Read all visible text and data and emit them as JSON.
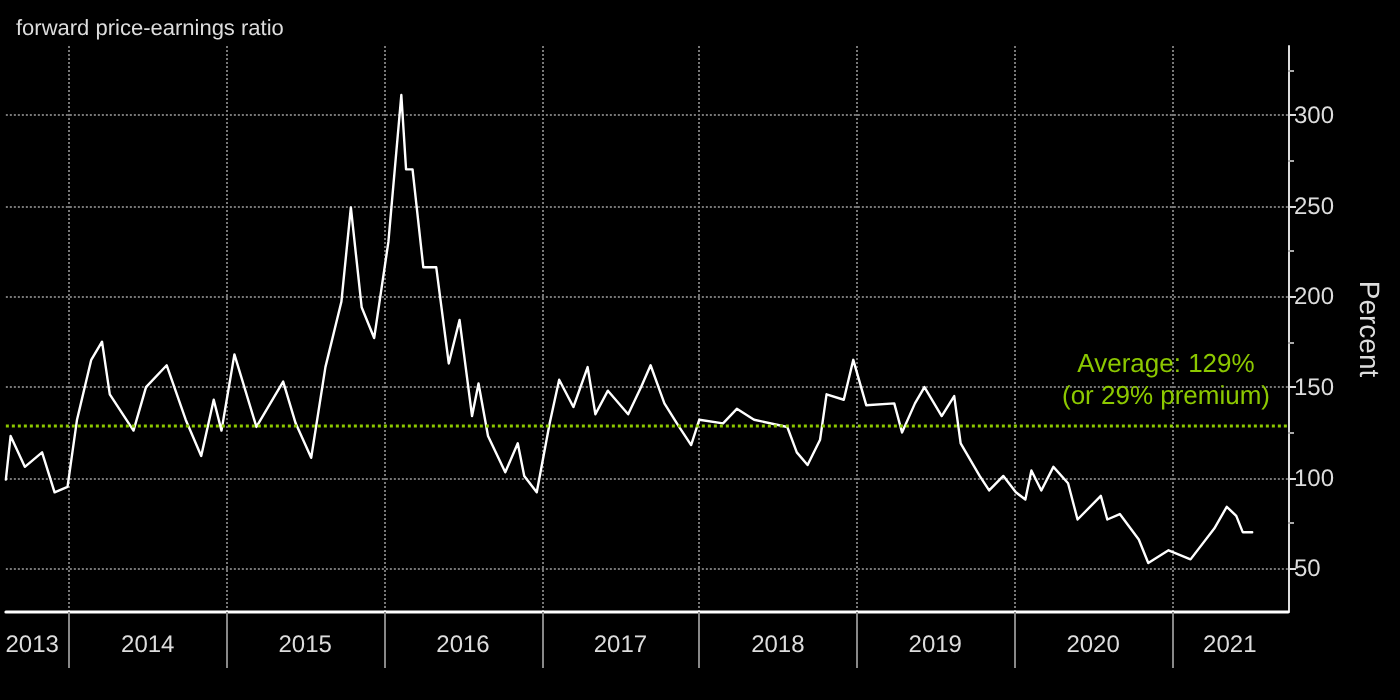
{
  "chart_data": {
    "type": "line",
    "title": "forward price-earnings ratio",
    "ylabel": "Percent",
    "x": [
      "2013-08-07",
      "2013-08-18",
      "2013-09-20",
      "2013-10-30",
      "2013-11-28",
      "2013-12-28",
      "2014-01-19",
      "2014-02-21",
      "2014-03-18",
      "2014-04-05",
      "2014-05-30",
      "2014-06-28",
      "2014-08-15",
      "2014-09-28",
      "2014-11-03",
      "2014-12-02",
      "2014-12-20",
      "2015-01-19",
      "2015-03-11",
      "2015-05-12",
      "2015-06-10",
      "2015-07-16",
      "2015-08-18",
      "2015-09-24",
      "2015-10-16",
      "2015-11-10",
      "2015-12-09",
      "2016-01-11",
      "2016-02-10",
      "2016-02-21",
      "2016-03-07",
      "2016-04-01",
      "2016-05-01",
      "2016-05-30",
      "2016-06-24",
      "2016-07-23",
      "2016-08-07",
      "2016-08-29",
      "2016-10-08",
      "2016-11-06",
      "2016-11-21",
      "2016-12-20",
      "2017-01-19",
      "2017-02-10",
      "2017-03-15",
      "2017-04-17",
      "2017-05-05",
      "2017-06-03",
      "2017-07-20",
      "2017-08-19",
      "2017-09-10",
      "2017-10-12",
      "2017-11-10",
      "2017-12-13",
      "2018-01-01",
      "2018-02-25",
      "2018-03-29",
      "2018-05-08",
      "2018-07-24",
      "2018-08-15",
      "2018-09-09",
      "2018-10-08",
      "2018-10-23",
      "2018-12-02",
      "2018-12-24",
      "2019-01-23",
      "2019-03-29",
      "2019-04-16",
      "2019-05-16",
      "2019-06-07",
      "2019-07-17",
      "2019-08-15",
      "2019-08-30",
      "2019-10-13",
      "2019-11-04",
      "2019-12-07",
      "2020-01-05",
      "2020-01-27",
      "2020-02-10",
      "2020-03-04",
      "2020-04-01",
      "2020-05-05",
      "2020-05-27",
      "2020-07-20",
      "2020-08-04",
      "2020-09-02",
      "2020-10-16",
      "2020-11-07",
      "2020-12-24",
      "2021-02-13",
      "2021-04-09",
      "2021-05-08",
      "2021-05-30",
      "2021-06-14",
      "2021-07-06"
    ],
    "series": [
      {
        "color": "#ffffff",
        "values": [
          99,
          123,
          106,
          114,
          92,
          95,
          132,
          165,
          175,
          146,
          126,
          150,
          162,
          132,
          112,
          143,
          126,
          168,
          128,
          153,
          130,
          111,
          161,
          197,
          249,
          194,
          177,
          230,
          311,
          270,
          270,
          216,
          216,
          163,
          187,
          134,
          152,
          123,
          103,
          119,
          101,
          92,
          130,
          154,
          139,
          161,
          135,
          148,
          135,
          150,
          162,
          141,
          130,
          118,
          132,
          130,
          138,
          132,
          128,
          114,
          107,
          121,
          146,
          143,
          165,
          140,
          141,
          125,
          141,
          150,
          134,
          145,
          119,
          101,
          93,
          101,
          92,
          88,
          104,
          93,
          106,
          97,
          77,
          90,
          77,
          80,
          66,
          53,
          60,
          55,
          72,
          84,
          79,
          70,
          70
        ]
      }
    ],
    "xlim": [
      "2013-08-07",
      "2021-09-27"
    ],
    "xticks": [
      {
        "value": "2014-01-01",
        "label": null
      },
      {
        "value": "2015-01-01",
        "label": null
      },
      {
        "value": "2016-01-01",
        "label": null
      },
      {
        "value": "2017-01-01",
        "label": null
      },
      {
        "value": "2018-01-01",
        "label": null
      },
      {
        "value": "2019-01-01",
        "label": null
      },
      {
        "value": "2020-01-01",
        "label": null
      },
      {
        "value": "2021-01-01",
        "label": null
      },
      {
        "value": "2013-10-07",
        "label": "2013"
      },
      {
        "value": "2014-07-02",
        "label": "2014"
      },
      {
        "value": "2015-07-02",
        "label": "2015"
      },
      {
        "value": "2016-07-02",
        "label": "2016"
      },
      {
        "value": "2017-07-02",
        "label": "2017"
      },
      {
        "value": "2018-07-02",
        "label": "2018"
      },
      {
        "value": "2019-07-02",
        "label": "2019"
      },
      {
        "value": "2020-07-02",
        "label": "2020"
      },
      {
        "value": "2021-05-15",
        "label": "2021"
      }
    ],
    "ylim": [
      26,
      338
    ],
    "yticks": [
      50,
      100,
      150,
      200,
      250,
      300,
      {
        "value": 75,
        "label": null
      },
      {
        "value": 125,
        "label": null
      },
      {
        "value": 175,
        "label": null
      },
      {
        "value": 225,
        "label": null
      },
      {
        "value": 275,
        "label": null
      },
      {
        "value": 325,
        "label": null
      }
    ],
    "ref_lines": [
      {
        "axis": "y",
        "value": 129,
        "label": "Average: 129%\n(or 29% premium)",
        "color": "#8cc800",
        "line_style": "dotted"
      }
    ],
    "grid": true,
    "marker": "none"
  }
}
